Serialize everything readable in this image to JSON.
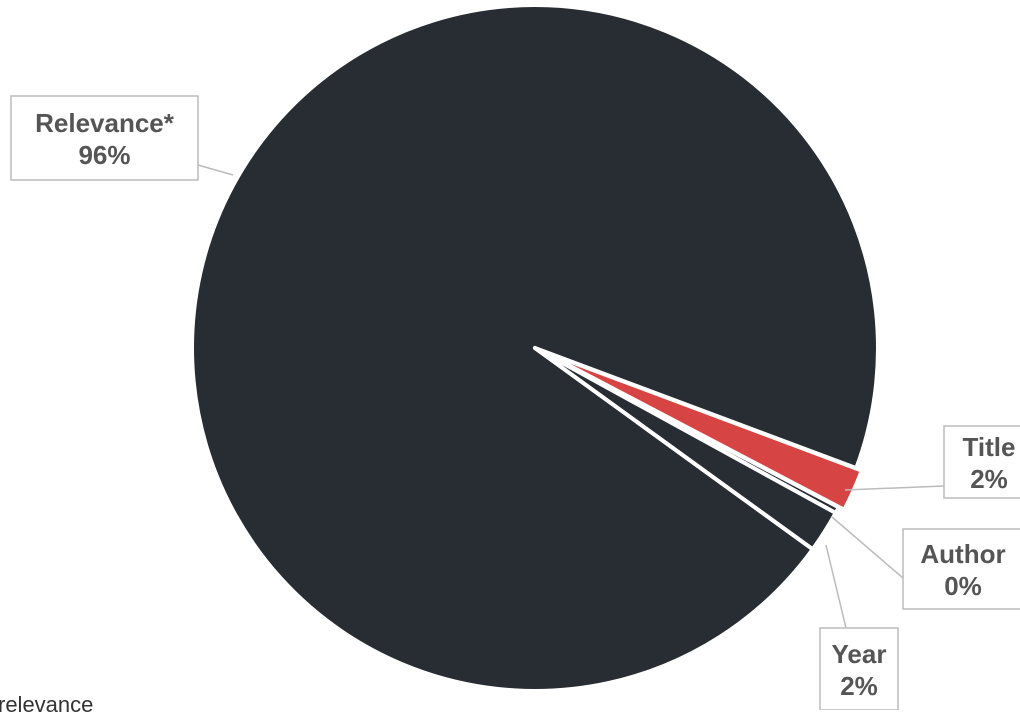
{
  "chart_data": {
    "type": "pie",
    "title": "",
    "slices": [
      {
        "label": "Relevance*",
        "value": 96,
        "display": "96%",
        "color": "#282c33"
      },
      {
        "label": "Title",
        "value": 2,
        "display": "2%",
        "color": "#d64444"
      },
      {
        "label": "Author",
        "value": 0.3,
        "display": "0%",
        "color": "#282c33"
      },
      {
        "label": "Year",
        "value": 2,
        "display": "2%",
        "color": "#282c33"
      }
    ],
    "label_color": "#555555",
    "leader_color": "#bbbbbb"
  },
  "footnote": "relevance"
}
